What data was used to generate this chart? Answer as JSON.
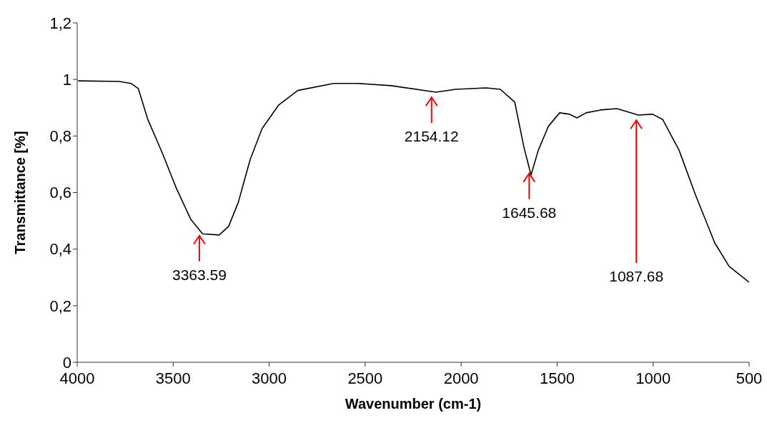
{
  "chart_data": {
    "type": "line",
    "xlabel": "Wavenumber (cm-1)",
    "ylabel": "Transmittance [%]",
    "xlim": [
      4000,
      500
    ],
    "xticks": [
      4000,
      3500,
      3000,
      2500,
      2000,
      1500,
      1000,
      500
    ],
    "ylim": [
      0,
      1.2
    ],
    "yticks": [
      {
        "value": 0,
        "label": "0"
      },
      {
        "value": 0.2,
        "label": "0,2"
      },
      {
        "value": 0.4,
        "label": "0,4"
      },
      {
        "value": 0.6,
        "label": "0,6"
      },
      {
        "value": 0.8,
        "label": "0,8"
      },
      {
        "value": 1,
        "label": "1"
      },
      {
        "value": 1.2,
        "label": "1,2"
      }
    ],
    "grid": false,
    "legend": false,
    "marker": "none",
    "line_style": "solid",
    "series": [
      {
        "color": "#000000",
        "x": [
          3995,
          3781,
          3720,
          3682,
          3633,
          3558,
          3484,
          3409,
          3347,
          3260,
          3211,
          3161,
          3099,
          3037,
          2950,
          2851,
          2664,
          2540,
          2365,
          2131,
          2030,
          1870,
          1796,
          1721,
          1673,
          1636,
          1598,
          1546,
          1487,
          1435,
          1397,
          1349,
          1274,
          1189,
          1077,
          1003,
          951,
          865,
          779,
          679,
          604,
          500
        ],
        "values": [
          0.995,
          0.993,
          0.986,
          0.968,
          0.86,
          0.742,
          0.616,
          0.506,
          0.454,
          0.45,
          0.481,
          0.565,
          0.717,
          0.826,
          0.91,
          0.961,
          0.986,
          0.986,
          0.978,
          0.955,
          0.965,
          0.97,
          0.965,
          0.92,
          0.76,
          0.662,
          0.75,
          0.834,
          0.882,
          0.877,
          0.864,
          0.882,
          0.892,
          0.897,
          0.874,
          0.877,
          0.859,
          0.75,
          0.591,
          0.422,
          0.339,
          0.283
        ]
      }
    ],
    "annotations": [
      {
        "text": "3363.59",
        "x": 3363.59,
        "y": 0.468
      },
      {
        "text": "2154.12",
        "x": 2154.12,
        "y": 0.957
      },
      {
        "text": "1645.68",
        "x": 1645.68,
        "y": 0.688
      },
      {
        "text": "1087.68",
        "x": 1087.68,
        "y": 0.876
      }
    ]
  }
}
